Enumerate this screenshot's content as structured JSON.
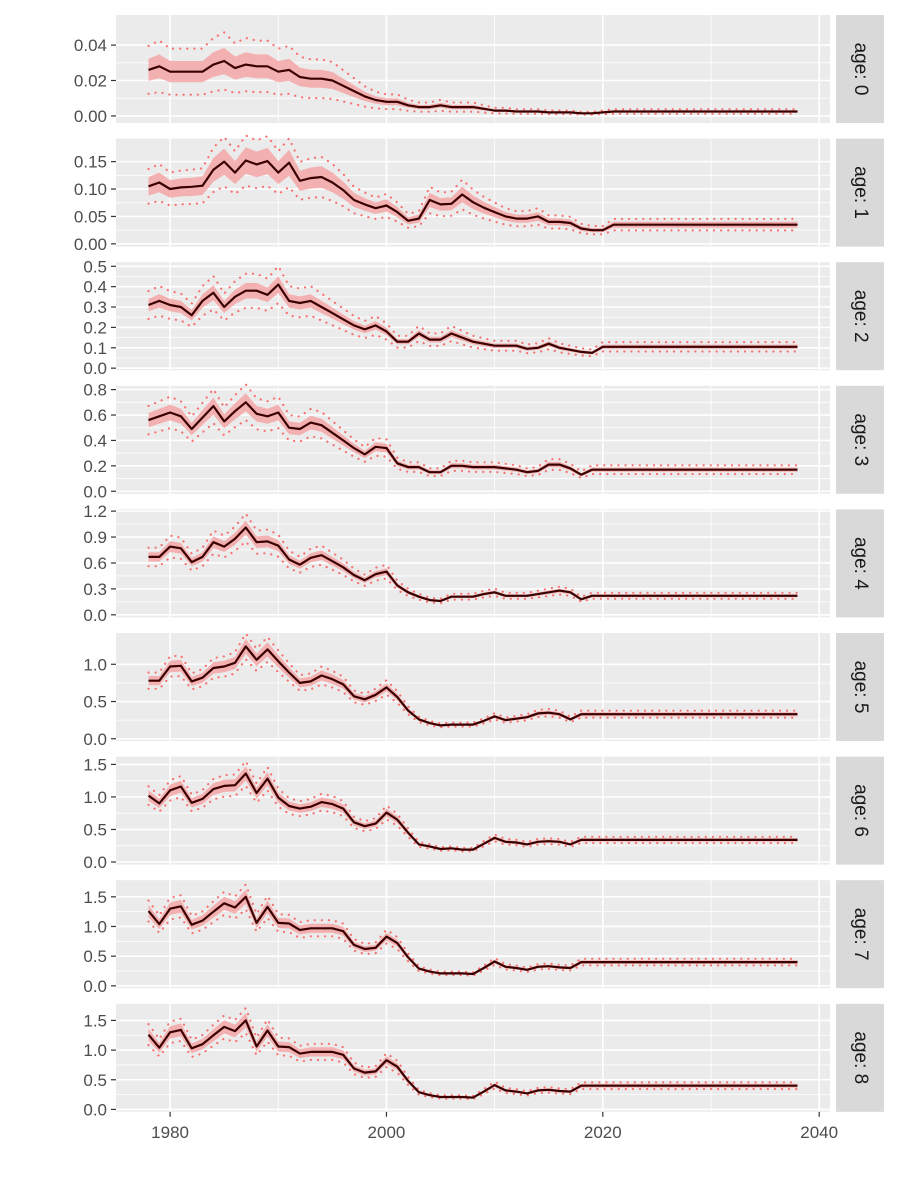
{
  "chart_data": {
    "type": "line",
    "facet_by": "age",
    "x_ticks": [
      1980,
      2000,
      2020,
      2040
    ],
    "x_range": [
      1975,
      2041
    ],
    "grid": true,
    "colors": {
      "panel_bg": "#ebebeb",
      "grid": "#ffffff",
      "ribbon": "#f4a6a6",
      "median_line": "#3a0000",
      "bound_points": "#f87171",
      "strip_bg": "#d9d9d9"
    },
    "panels": [
      {
        "strip": "age: 0",
        "ylim": [
          -0.004,
          0.057
        ],
        "y_ticks": [
          "0.00",
          "0.02",
          "0.04"
        ],
        "series": {
          "x_start": 1978,
          "median": [
            0.026,
            0.028,
            0.025,
            0.025,
            0.025,
            0.025,
            0.029,
            0.031,
            0.027,
            0.029,
            0.028,
            0.028,
            0.025,
            0.026,
            0.022,
            0.021,
            0.021,
            0.02,
            0.017,
            0.014,
            0.011,
            0.009,
            0.008,
            0.008,
            0.006,
            0.005,
            0.005,
            0.006,
            0.005,
            0.005,
            0.005,
            0.004,
            0.003,
            0.003,
            0.0025,
            0.0025,
            0.0025,
            0.002,
            0.002,
            0.002,
            0.0015,
            0.0015,
            0.002,
            0.0025,
            0.0025,
            0.0025,
            0.0025,
            0.0025,
            0.0025,
            0.0025,
            0.0025,
            0.0025,
            0.0025,
            0.0025,
            0.0025,
            0.0025,
            0.0025,
            0.0025,
            0.0025,
            0.0025,
            0.0025
          ],
          "ribbon_frac": 0.24,
          "bound_frac": 0.52
        }
      },
      {
        "strip": "age: 1",
        "ylim": [
          -0.005,
          0.192
        ],
        "y_ticks": [
          "0.00",
          "0.05",
          "0.10",
          "0.15"
        ],
        "series": {
          "x_start": 1978,
          "median": [
            0.105,
            0.112,
            0.1,
            0.103,
            0.104,
            0.106,
            0.135,
            0.15,
            0.13,
            0.152,
            0.145,
            0.151,
            0.13,
            0.148,
            0.115,
            0.12,
            0.122,
            0.112,
            0.098,
            0.08,
            0.072,
            0.065,
            0.07,
            0.058,
            0.042,
            0.046,
            0.08,
            0.072,
            0.073,
            0.09,
            0.076,
            0.066,
            0.058,
            0.05,
            0.046,
            0.046,
            0.05,
            0.04,
            0.04,
            0.038,
            0.028,
            0.025,
            0.025,
            0.035,
            0.035,
            0.035,
            0.035,
            0.035,
            0.035,
            0.035,
            0.035,
            0.035,
            0.035,
            0.035,
            0.035,
            0.035,
            0.035,
            0.035,
            0.035,
            0.035,
            0.035
          ],
          "ribbon_frac": 0.16,
          "bound_frac": 0.3
        }
      },
      {
        "strip": "age: 2",
        "ylim": [
          -0.01,
          0.52
        ],
        "y_ticks": [
          "0.0",
          "0.1",
          "0.2",
          "0.3",
          "0.4",
          "0.5"
        ],
        "series": {
          "x_start": 1978,
          "median": [
            0.31,
            0.33,
            0.31,
            0.3,
            0.26,
            0.33,
            0.37,
            0.3,
            0.35,
            0.38,
            0.38,
            0.36,
            0.41,
            0.33,
            0.32,
            0.33,
            0.3,
            0.27,
            0.24,
            0.21,
            0.19,
            0.21,
            0.18,
            0.13,
            0.13,
            0.17,
            0.14,
            0.14,
            0.17,
            0.15,
            0.13,
            0.12,
            0.11,
            0.11,
            0.11,
            0.095,
            0.1,
            0.12,
            0.1,
            0.09,
            0.08,
            0.075,
            0.105,
            0.105,
            0.105,
            0.105,
            0.105,
            0.105,
            0.105,
            0.105,
            0.105,
            0.105,
            0.105,
            0.105,
            0.105,
            0.105,
            0.105,
            0.105,
            0.105,
            0.105,
            0.105
          ],
          "ribbon_frac": 0.1,
          "bound_frac": 0.22
        }
      },
      {
        "strip": "age: 3",
        "ylim": [
          -0.02,
          0.83
        ],
        "y_ticks": [
          "0.0",
          "0.2",
          "0.4",
          "0.6",
          "0.8"
        ],
        "series": {
          "x_start": 1978,
          "median": [
            0.56,
            0.59,
            0.62,
            0.59,
            0.49,
            0.58,
            0.67,
            0.55,
            0.63,
            0.7,
            0.61,
            0.59,
            0.62,
            0.5,
            0.49,
            0.54,
            0.52,
            0.46,
            0.4,
            0.34,
            0.29,
            0.35,
            0.34,
            0.22,
            0.19,
            0.19,
            0.15,
            0.15,
            0.2,
            0.2,
            0.19,
            0.19,
            0.19,
            0.18,
            0.17,
            0.15,
            0.16,
            0.21,
            0.21,
            0.18,
            0.13,
            0.17,
            0.17,
            0.17,
            0.17,
            0.17,
            0.17,
            0.17,
            0.17,
            0.17,
            0.17,
            0.17,
            0.17,
            0.17,
            0.17,
            0.17,
            0.17,
            0.17,
            0.17,
            0.17,
            0.17
          ],
          "ribbon_frac": 0.1,
          "bound_frac": 0.2
        }
      },
      {
        "strip": "age: 4",
        "ylim": [
          -0.03,
          1.22
        ],
        "y_ticks": [
          "0.0",
          "0.3",
          "0.6",
          "0.9",
          "1.2"
        ],
        "series": {
          "x_start": 1978,
          "median": [
            0.67,
            0.67,
            0.79,
            0.77,
            0.61,
            0.67,
            0.84,
            0.79,
            0.88,
            1.01,
            0.84,
            0.85,
            0.8,
            0.64,
            0.58,
            0.66,
            0.69,
            0.62,
            0.55,
            0.46,
            0.4,
            0.47,
            0.5,
            0.34,
            0.26,
            0.21,
            0.17,
            0.16,
            0.21,
            0.21,
            0.21,
            0.24,
            0.26,
            0.22,
            0.22,
            0.22,
            0.24,
            0.26,
            0.28,
            0.26,
            0.18,
            0.22,
            0.22,
            0.22,
            0.22,
            0.22,
            0.22,
            0.22,
            0.22,
            0.22,
            0.22,
            0.22,
            0.22,
            0.22,
            0.22,
            0.22,
            0.22,
            0.22,
            0.22,
            0.22,
            0.22
          ],
          "ribbon_frac": 0.08,
          "bound_frac": 0.16
        }
      },
      {
        "strip": "age: 5",
        "ylim": [
          -0.03,
          1.42
        ],
        "y_ticks": [
          "0.0",
          "0.5",
          "1.0"
        ],
        "series": {
          "x_start": 1978,
          "median": [
            0.78,
            0.78,
            0.97,
            0.98,
            0.77,
            0.82,
            0.95,
            0.97,
            1.02,
            1.24,
            1.06,
            1.2,
            1.04,
            0.89,
            0.75,
            0.77,
            0.85,
            0.8,
            0.73,
            0.57,
            0.53,
            0.59,
            0.69,
            0.56,
            0.38,
            0.26,
            0.21,
            0.18,
            0.19,
            0.19,
            0.19,
            0.24,
            0.3,
            0.25,
            0.27,
            0.29,
            0.34,
            0.35,
            0.33,
            0.26,
            0.33,
            0.33,
            0.33,
            0.33,
            0.33,
            0.33,
            0.33,
            0.33,
            0.33,
            0.33,
            0.33,
            0.33,
            0.33,
            0.33,
            0.33,
            0.33,
            0.33,
            0.33,
            0.33,
            0.33,
            0.33
          ],
          "ribbon_frac": 0.08,
          "bound_frac": 0.14
        }
      },
      {
        "strip": "age: 6",
        "ylim": [
          -0.04,
          1.62
        ],
        "y_ticks": [
          "0.0",
          "0.5",
          "1.0",
          "1.5"
        ],
        "series": {
          "x_start": 1978,
          "median": [
            1.02,
            0.9,
            1.1,
            1.16,
            0.91,
            0.97,
            1.12,
            1.17,
            1.18,
            1.36,
            1.06,
            1.28,
            0.99,
            0.86,
            0.82,
            0.85,
            0.92,
            0.89,
            0.82,
            0.61,
            0.55,
            0.59,
            0.76,
            0.65,
            0.45,
            0.27,
            0.24,
            0.2,
            0.21,
            0.19,
            0.19,
            0.28,
            0.37,
            0.31,
            0.3,
            0.27,
            0.31,
            0.32,
            0.31,
            0.27,
            0.34,
            0.34,
            0.34,
            0.34,
            0.34,
            0.34,
            0.34,
            0.34,
            0.34,
            0.34,
            0.34,
            0.34,
            0.34,
            0.34,
            0.34,
            0.34,
            0.34,
            0.34,
            0.34,
            0.34,
            0.34
          ],
          "ribbon_frac": 0.08,
          "bound_frac": 0.14
        }
      },
      {
        "strip": "age: 7",
        "ylim": [
          -0.04,
          1.78
        ],
        "y_ticks": [
          "0.0",
          "0.5",
          "1.0",
          "1.5"
        ],
        "series": {
          "x_start": 1978,
          "median": [
            1.26,
            1.04,
            1.3,
            1.34,
            1.03,
            1.1,
            1.25,
            1.39,
            1.32,
            1.5,
            1.06,
            1.33,
            1.06,
            1.05,
            0.94,
            0.97,
            0.97,
            0.97,
            0.92,
            0.69,
            0.62,
            0.64,
            0.83,
            0.72,
            0.48,
            0.29,
            0.24,
            0.21,
            0.21,
            0.21,
            0.2,
            0.3,
            0.41,
            0.32,
            0.3,
            0.27,
            0.32,
            0.33,
            0.31,
            0.3,
            0.4,
            0.4,
            0.4,
            0.4,
            0.4,
            0.4,
            0.4,
            0.4,
            0.4,
            0.4,
            0.4,
            0.4,
            0.4,
            0.4,
            0.4,
            0.4,
            0.4,
            0.4,
            0.4,
            0.4,
            0.4
          ],
          "ribbon_frac": 0.08,
          "bound_frac": 0.14
        }
      },
      {
        "strip": "age: 8",
        "ylim": [
          -0.04,
          1.78
        ],
        "y_ticks": [
          "0.0",
          "0.5",
          "1.0",
          "1.5"
        ],
        "series": {
          "x_start": 1978,
          "median": [
            1.26,
            1.04,
            1.3,
            1.34,
            1.03,
            1.1,
            1.25,
            1.39,
            1.32,
            1.5,
            1.06,
            1.33,
            1.06,
            1.05,
            0.94,
            0.97,
            0.97,
            0.97,
            0.92,
            0.69,
            0.62,
            0.64,
            0.83,
            0.72,
            0.48,
            0.29,
            0.24,
            0.21,
            0.21,
            0.21,
            0.2,
            0.3,
            0.41,
            0.32,
            0.3,
            0.27,
            0.32,
            0.33,
            0.31,
            0.3,
            0.4,
            0.4,
            0.4,
            0.4,
            0.4,
            0.4,
            0.4,
            0.4,
            0.4,
            0.4,
            0.4,
            0.4,
            0.4,
            0.4,
            0.4,
            0.4,
            0.4,
            0.4,
            0.4,
            0.4,
            0.4
          ],
          "ribbon_frac": 0.08,
          "bound_frac": 0.14
        }
      }
    ]
  }
}
